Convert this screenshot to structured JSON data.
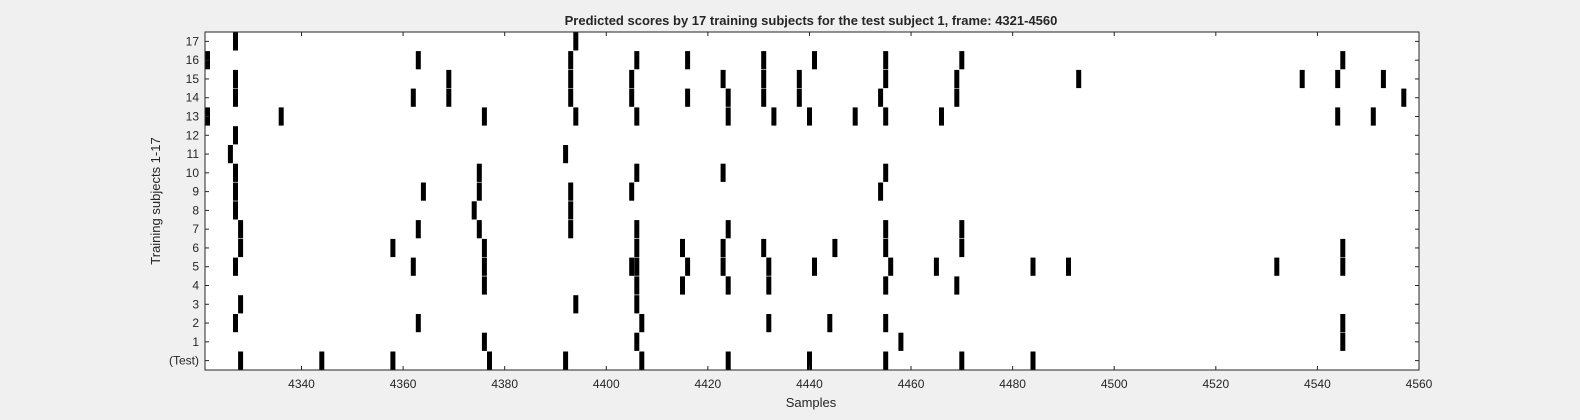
{
  "chart_data": {
    "type": "heatmap",
    "title": "Predicted scores by 17 training subjects for the test subject 1, frame: 4321-4560",
    "xlabel": "Samples",
    "ylabel": "Training subjects 1-17",
    "xlim": [
      4321,
      4560
    ],
    "x_ticks": [
      4340,
      4360,
      4380,
      4400,
      4420,
      4440,
      4460,
      4480,
      4500,
      4520,
      4540,
      4560
    ],
    "y_tick_labels": [
      "(Test)",
      "1",
      "2",
      "3",
      "4",
      "5",
      "6",
      "7",
      "8",
      "9",
      "10",
      "11",
      "12",
      "13",
      "14",
      "15",
      "16",
      "17"
    ],
    "grid": false,
    "colors": {
      "mark": "#000000",
      "background": "#ffffff",
      "figure": "#f0f0f0",
      "axis": "#262626"
    },
    "rows": [
      {
        "label": "(Test)",
        "samples": [
          4328,
          4344,
          4358,
          4377,
          4392,
          4407,
          4424,
          4440,
          4455,
          4470,
          4484
        ]
      },
      {
        "label": "1",
        "samples": [
          4376,
          4406,
          4458,
          4545
        ]
      },
      {
        "label": "2",
        "samples": [
          4327,
          4363,
          4407,
          4432,
          4444,
          4455,
          4545
        ]
      },
      {
        "label": "3",
        "samples": [
          4328,
          4394,
          4406
        ]
      },
      {
        "label": "4",
        "samples": [
          4376,
          4406,
          4415,
          4424,
          4432,
          4455,
          4469
        ]
      },
      {
        "label": "5",
        "samples": [
          4327,
          4362,
          4376,
          4405,
          4406,
          4416,
          4423,
          4432,
          4441,
          4456,
          4465,
          4484,
          4491,
          4532,
          4545
        ]
      },
      {
        "label": "6",
        "samples": [
          4328,
          4358,
          4376,
          4406,
          4415,
          4423,
          4431,
          4445,
          4455,
          4470,
          4545
        ]
      },
      {
        "label": "7",
        "samples": [
          4328,
          4363,
          4375,
          4393,
          4406,
          4424,
          4455,
          4470
        ]
      },
      {
        "label": "8",
        "samples": [
          4327,
          4374,
          4393
        ]
      },
      {
        "label": "9",
        "samples": [
          4327,
          4364,
          4375,
          4393,
          4405,
          4454
        ]
      },
      {
        "label": "10",
        "samples": [
          4327,
          4375,
          4406,
          4423,
          4455
        ]
      },
      {
        "label": "11",
        "samples": [
          4326,
          4392
        ]
      },
      {
        "label": "12",
        "samples": [
          4327
        ]
      },
      {
        "label": "13",
        "samples": [
          4321,
          4336,
          4376,
          4394,
          4406,
          4424,
          4433,
          4440,
          4449,
          4455,
          4466,
          4544,
          4551
        ]
      },
      {
        "label": "14",
        "samples": [
          4327,
          4362,
          4369,
          4393,
          4405,
          4416,
          4424,
          4431,
          4438,
          4454,
          4469,
          4557
        ]
      },
      {
        "label": "15",
        "samples": [
          4327,
          4369,
          4393,
          4405,
          4423,
          4431,
          4438,
          4455,
          4469,
          4493,
          4537,
          4544,
          4553
        ]
      },
      {
        "label": "16",
        "samples": [
          4321,
          4363,
          4393,
          4406,
          4416,
          4431,
          4441,
          4455,
          4470,
          4545
        ]
      },
      {
        "label": "17",
        "samples": [
          4327,
          4394
        ]
      }
    ]
  }
}
